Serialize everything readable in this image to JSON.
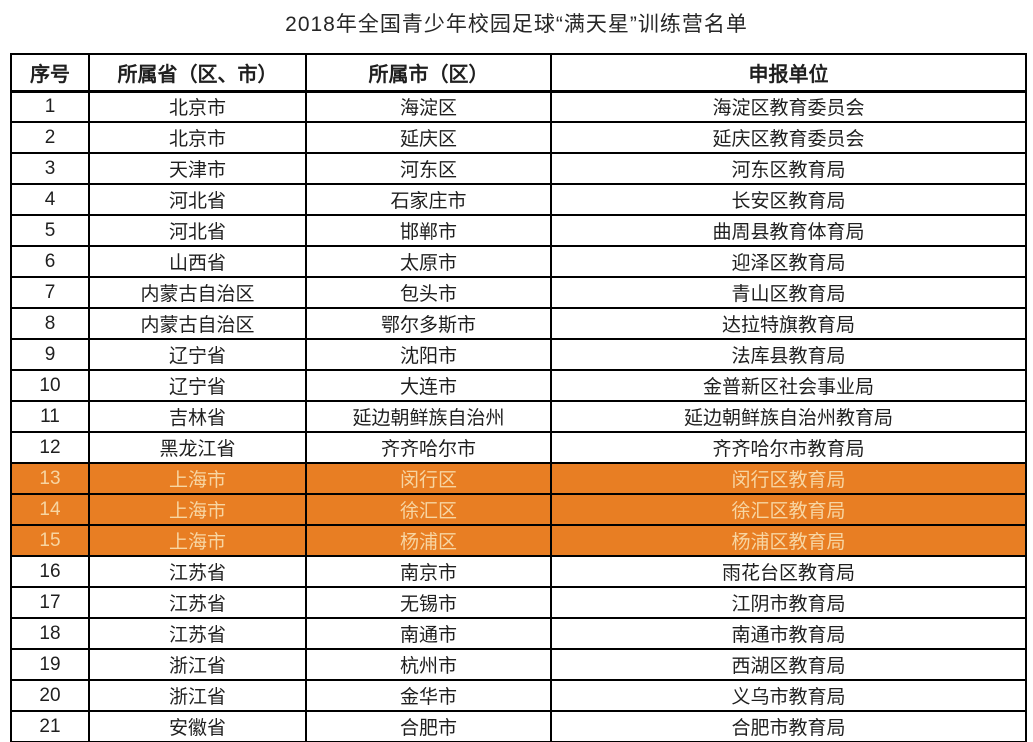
{
  "page": {
    "title": "2018年全国青少年校园足球“满天星”训练营名单"
  },
  "colors": {
    "highlight_bg": "#E87E23",
    "highlight_text": "#F7D5A2",
    "border": "#000000",
    "text": "#1F1F1F"
  },
  "table": {
    "headers": [
      "序号",
      "所属省（区、市）",
      "所属市（区）",
      "申报单位"
    ],
    "rows": [
      {
        "num": "1",
        "province": "北京市",
        "city": "海淀区",
        "unit": "海淀区教育委员会",
        "highlighted": false
      },
      {
        "num": "2",
        "province": "北京市",
        "city": "延庆区",
        "unit": "延庆区教育委员会",
        "highlighted": false
      },
      {
        "num": "3",
        "province": "天津市",
        "city": "河东区",
        "unit": "河东区教育局",
        "highlighted": false
      },
      {
        "num": "4",
        "province": "河北省",
        "city": "石家庄市",
        "unit": "长安区教育局",
        "highlighted": false
      },
      {
        "num": "5",
        "province": "河北省",
        "city": "邯郸市",
        "unit": "曲周县教育体育局",
        "highlighted": false
      },
      {
        "num": "6",
        "province": "山西省",
        "city": "太原市",
        "unit": "迎泽区教育局",
        "highlighted": false
      },
      {
        "num": "7",
        "province": "内蒙古自治区",
        "city": "包头市",
        "unit": "青山区教育局",
        "highlighted": false
      },
      {
        "num": "8",
        "province": "内蒙古自治区",
        "city": "鄂尔多斯市",
        "unit": "达拉特旗教育局",
        "highlighted": false
      },
      {
        "num": "9",
        "province": "辽宁省",
        "city": "沈阳市",
        "unit": "法库县教育局",
        "highlighted": false
      },
      {
        "num": "10",
        "province": "辽宁省",
        "city": "大连市",
        "unit": "金普新区社会事业局",
        "highlighted": false
      },
      {
        "num": "11",
        "province": "吉林省",
        "city": "延边朝鲜族自治州",
        "unit": "延边朝鲜族自治州教育局",
        "highlighted": false
      },
      {
        "num": "12",
        "province": "黑龙江省",
        "city": "齐齐哈尔市",
        "unit": "齐齐哈尔市教育局",
        "highlighted": false
      },
      {
        "num": "13",
        "province": "上海市",
        "city": "闵行区",
        "unit": "闵行区教育局",
        "highlighted": true
      },
      {
        "num": "14",
        "province": "上海市",
        "city": "徐汇区",
        "unit": "徐汇区教育局",
        "highlighted": true
      },
      {
        "num": "15",
        "province": "上海市",
        "city": "杨浦区",
        "unit": "杨浦区教育局",
        "highlighted": true
      },
      {
        "num": "16",
        "province": "江苏省",
        "city": "南京市",
        "unit": "雨花台区教育局",
        "highlighted": false
      },
      {
        "num": "17",
        "province": "江苏省",
        "city": "无锡市",
        "unit": "江阴市教育局",
        "highlighted": false
      },
      {
        "num": "18",
        "province": "江苏省",
        "city": "南通市",
        "unit": "南通市教育局",
        "highlighted": false
      },
      {
        "num": "19",
        "province": "浙江省",
        "city": "杭州市",
        "unit": "西湖区教育局",
        "highlighted": false
      },
      {
        "num": "20",
        "province": "浙江省",
        "city": "金华市",
        "unit": "义乌市教育局",
        "highlighted": false
      },
      {
        "num": "21",
        "province": "安徽省",
        "city": "合肥市",
        "unit": "合肥市教育局",
        "highlighted": false
      }
    ]
  }
}
